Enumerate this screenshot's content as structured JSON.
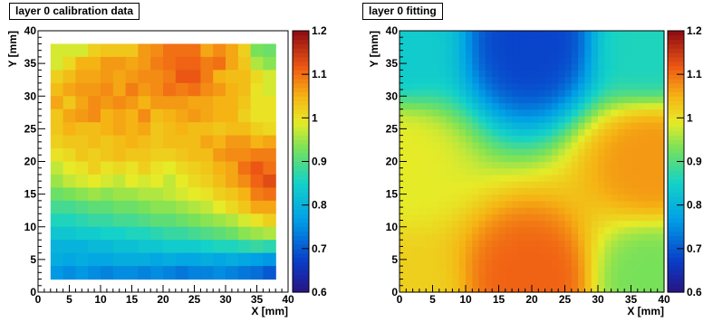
{
  "chart_data": [
    {
      "type": "heatmap",
      "title": "layer 0 calibration data",
      "xlabel": "X [mm]",
      "ylabel": "Y [mm]",
      "xlim": [
        0,
        40
      ],
      "ylim": [
        0,
        40
      ],
      "x_ticks": [
        "0",
        "5",
        "10",
        "15",
        "20",
        "25",
        "30",
        "35",
        "40"
      ],
      "y_ticks": [
        "0",
        "5",
        "10",
        "15",
        "20",
        "25",
        "30",
        "35",
        "40"
      ],
      "colorbar": {
        "zlim": [
          0.6,
          1.2
        ],
        "ticks": [
          "0.6",
          "0.7",
          "0.8",
          "0.9",
          "1",
          "1.1",
          "1.2"
        ]
      },
      "bin_size_mm": 2,
      "x_range": [
        2,
        38
      ],
      "y_range": [
        2,
        38
      ],
      "z_values": [
        [
          0.98,
          0.98,
          0.98,
          1.02,
          1.03,
          1.03,
          1.03,
          1.07,
          1.08,
          1.1,
          1.1,
          1.1,
          1.06,
          1.08,
          1.06,
          1.02,
          0.93,
          0.92
        ],
        [
          0.98,
          1.01,
          1.05,
          1.05,
          1.07,
          1.07,
          1.06,
          1.07,
          1.09,
          1.1,
          1.11,
          1.11,
          1.09,
          1.1,
          1.06,
          1.03,
          0.96,
          0.94
        ],
        [
          1.02,
          1.04,
          1.06,
          1.06,
          1.07,
          1.06,
          1.07,
          1.08,
          1.08,
          1.09,
          1.12,
          1.12,
          1.09,
          1.05,
          1.04,
          1.04,
          1.01,
          0.98
        ],
        [
          1.04,
          1.06,
          1.07,
          1.07,
          1.08,
          1.06,
          1.09,
          1.07,
          1.08,
          1.1,
          1.09,
          1.1,
          1.08,
          1.07,
          1.05,
          1.04,
          1.0,
          0.98
        ],
        [
          1.06,
          1.03,
          1.06,
          1.08,
          1.07,
          1.08,
          1.07,
          1.05,
          1.07,
          1.07,
          1.07,
          1.06,
          1.06,
          1.05,
          1.05,
          1.03,
          1.0,
          1.0
        ],
        [
          1.03,
          1.06,
          1.07,
          1.08,
          1.05,
          1.06,
          1.05,
          1.08,
          1.04,
          1.05,
          1.06,
          1.07,
          1.06,
          1.05,
          1.05,
          1.02,
          1.0,
          1.0
        ],
        [
          1.03,
          1.05,
          1.04,
          1.04,
          1.05,
          1.06,
          1.05,
          1.06,
          1.03,
          1.04,
          1.05,
          1.04,
          1.04,
          1.03,
          1.04,
          1.04,
          1.02,
          1.01
        ],
        [
          1.02,
          1.03,
          1.03,
          1.04,
          1.03,
          1.04,
          1.05,
          1.04,
          1.03,
          1.04,
          1.04,
          1.04,
          1.06,
          1.05,
          1.07,
          1.07,
          1.05,
          1.06
        ],
        [
          1.0,
          1.01,
          1.03,
          1.02,
          1.03,
          1.04,
          1.03,
          1.03,
          1.02,
          1.02,
          1.03,
          1.04,
          1.04,
          1.07,
          1.08,
          1.08,
          1.09,
          1.09
        ],
        [
          0.97,
          0.99,
          1.0,
          1.02,
          1.0,
          1.01,
          1.0,
          1.02,
          1.0,
          0.99,
          1.01,
          1.02,
          1.03,
          1.05,
          1.06,
          1.1,
          1.12,
          1.1
        ],
        [
          0.95,
          0.97,
          0.98,
          0.99,
          0.98,
          0.97,
          0.99,
          0.98,
          0.99,
          0.97,
          0.99,
          1.01,
          1.02,
          1.04,
          1.06,
          1.08,
          1.11,
          1.13
        ],
        [
          0.92,
          0.93,
          0.94,
          0.95,
          0.94,
          0.95,
          0.95,
          0.96,
          0.96,
          0.97,
          0.98,
          0.99,
          1.0,
          1.02,
          1.03,
          1.05,
          1.09,
          1.1
        ],
        [
          0.89,
          0.89,
          0.9,
          0.91,
          0.91,
          0.92,
          0.92,
          0.93,
          0.94,
          0.94,
          0.95,
          0.96,
          0.97,
          0.99,
          1.01,
          1.03,
          1.06,
          1.06
        ],
        [
          0.86,
          0.86,
          0.87,
          0.88,
          0.88,
          0.89,
          0.89,
          0.9,
          0.91,
          0.91,
          0.92,
          0.93,
          0.94,
          0.95,
          0.96,
          0.98,
          1.0,
          1.02
        ],
        [
          0.83,
          0.83,
          0.84,
          0.84,
          0.85,
          0.85,
          0.86,
          0.86,
          0.87,
          0.88,
          0.88,
          0.89,
          0.9,
          0.91,
          0.92,
          0.94,
          0.95,
          0.96
        ],
        [
          0.8,
          0.8,
          0.8,
          0.81,
          0.81,
          0.82,
          0.82,
          0.83,
          0.83,
          0.84,
          0.84,
          0.84,
          0.85,
          0.86,
          0.86,
          0.87,
          0.88,
          0.87
        ],
        [
          0.79,
          0.78,
          0.79,
          0.78,
          0.78,
          0.79,
          0.79,
          0.79,
          0.78,
          0.79,
          0.78,
          0.78,
          0.79,
          0.78,
          0.79,
          0.78,
          0.77,
          0.76
        ],
        [
          0.76,
          0.75,
          0.76,
          0.75,
          0.74,
          0.75,
          0.75,
          0.74,
          0.75,
          0.74,
          0.73,
          0.74,
          0.74,
          0.75,
          0.74,
          0.73,
          0.72,
          0.7
        ]
      ]
    },
    {
      "type": "heatmap",
      "title": "layer 0 fitting",
      "xlabel": "X [mm]",
      "ylabel": "Y [mm]",
      "xlim": [
        0,
        40
      ],
      "ylim": [
        0,
        40
      ],
      "x_ticks": [
        "0",
        "5",
        "10",
        "15",
        "20",
        "25",
        "30",
        "35",
        "40"
      ],
      "y_ticks": [
        "0",
        "5",
        "10",
        "15",
        "20",
        "25",
        "30",
        "35",
        "40"
      ],
      "colorbar": {
        "zlim": [
          0.6,
          1.2
        ],
        "ticks": [
          "0.6",
          "0.7",
          "0.8",
          "0.9",
          "1",
          "1.1",
          "1.2"
        ]
      },
      "bin_size_mm": 1,
      "x_range": [
        0,
        40
      ],
      "y_range": [
        0,
        40
      ],
      "fit_samples": [
        {
          "x": 0,
          "y": 0,
          "z": 1.02
        },
        {
          "x": 20,
          "y": 2,
          "z": 1.11
        },
        {
          "x": 38,
          "y": 2,
          "z": 0.93
        },
        {
          "x": 0,
          "y": 20,
          "z": 0.99
        },
        {
          "x": 38,
          "y": 20,
          "z": 1.07
        },
        {
          "x": 20,
          "y": 38,
          "z": 0.68
        },
        {
          "x": 0,
          "y": 38,
          "z": 0.84
        },
        {
          "x": 38,
          "y": 38,
          "z": 0.86
        }
      ]
    }
  ]
}
